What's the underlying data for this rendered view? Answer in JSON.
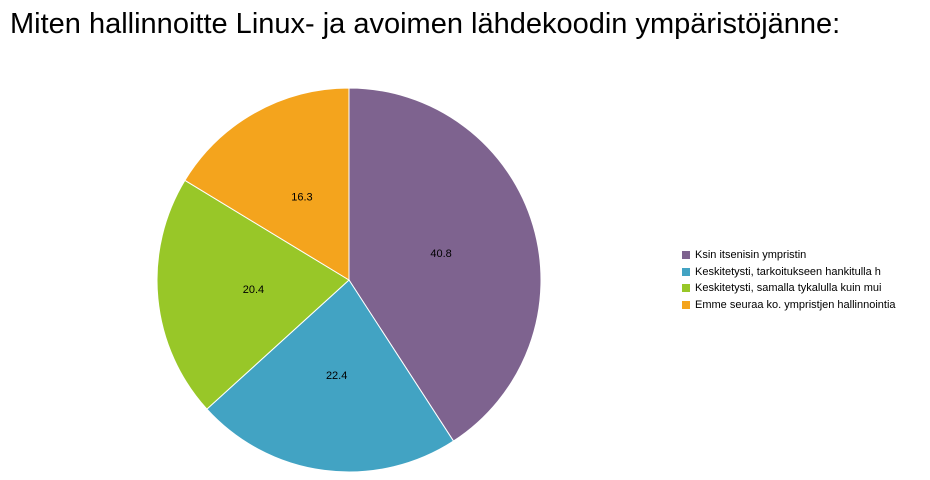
{
  "chart_data": {
    "type": "pie",
    "title": "Miten hallinnoitte Linux- ja avoimen lähdekoodin ympäristöjänne:",
    "categories": [
      "Ksin itsenisin ympristin",
      "Keskitetysti, tarkoitukseen hankitulla h",
      "Keskitetysti, samalla tykalulla kuin mui",
      "Emme seuraa ko. ympristjen hallinnointia"
    ],
    "values": [
      40.8,
      22.4,
      20.4,
      16.3
    ],
    "colors": [
      "#7e638f",
      "#42a3c3",
      "#98c728",
      "#f4a41d"
    ],
    "legend": "right",
    "data_labels": [
      "40.8",
      "22.4",
      "20.4",
      "16.3"
    ]
  }
}
